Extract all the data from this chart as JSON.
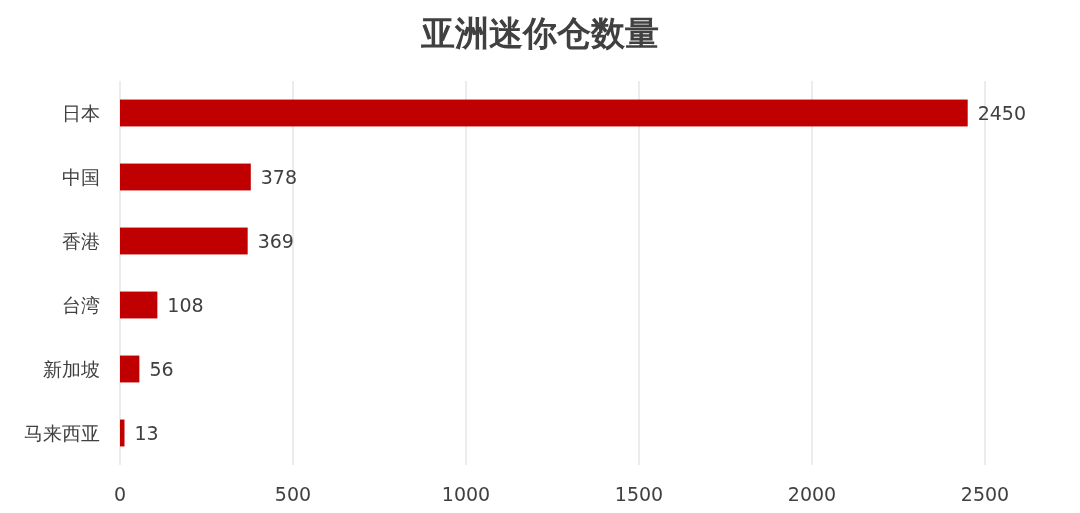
{
  "chart_data": {
    "type": "bar",
    "orientation": "horizontal",
    "title": "亚洲迷你仓数量",
    "categories": [
      "日本",
      "中国",
      "香港",
      "台湾",
      "新加坡",
      "马来西亚"
    ],
    "values": [
      2450,
      378,
      369,
      108,
      56,
      13
    ],
    "color": "#c00000",
    "xlim": [
      0,
      2500
    ],
    "xticks": [
      0,
      500,
      1000,
      1500,
      2000,
      2500
    ],
    "grid": "x",
    "data_labels": true
  }
}
